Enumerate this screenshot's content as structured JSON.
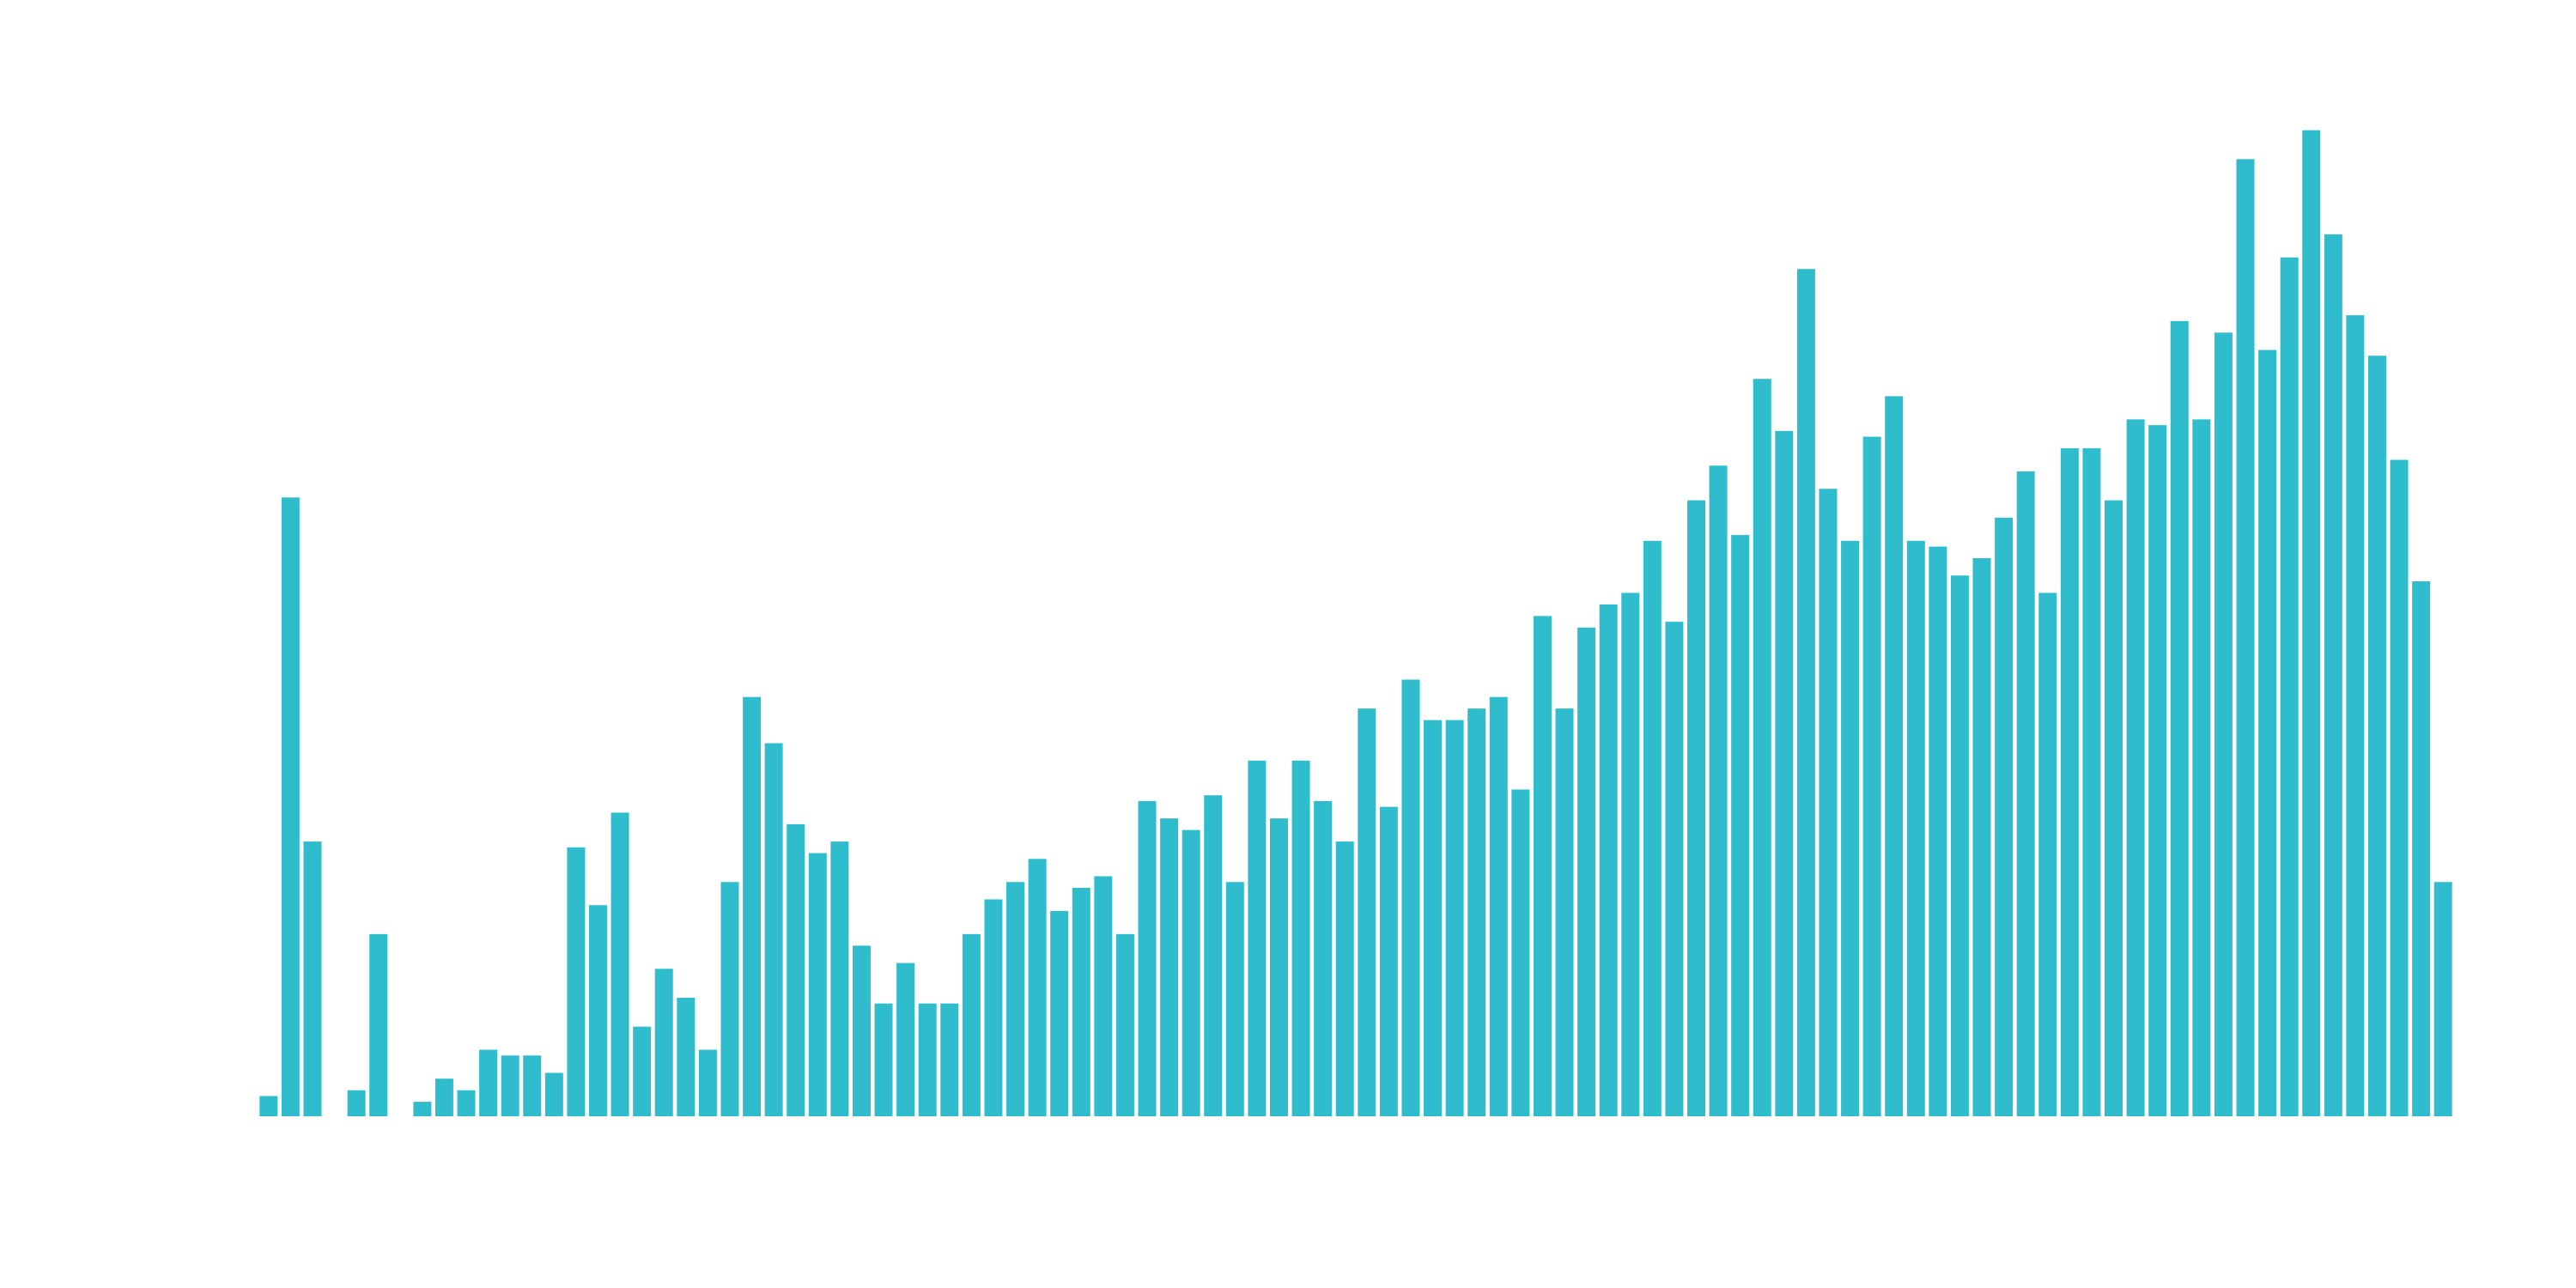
{
  "chart_data": {
    "type": "bar",
    "color": "#2fbccd",
    "title": "",
    "xlabel": "",
    "ylabel": "",
    "ylim": [
      0,
      170
    ],
    "grid": false,
    "legend": "none",
    "values": [
      3.5,
      107,
      47.5,
      0,
      4.5,
      31.5,
      0,
      2.5,
      6.5,
      4.5,
      11.5,
      10.5,
      10.5,
      7.5,
      46.5,
      36.5,
      52.5,
      15.5,
      25.5,
      20.5,
      11.5,
      40.5,
      72.5,
      64.5,
      50.5,
      45.5,
      47.5,
      29.5,
      19.5,
      26.5,
      19.5,
      19.5,
      31.5,
      37.5,
      40.5,
      44.5,
      35.5,
      39.5,
      41.5,
      31.5,
      54.5,
      51.5,
      49.5,
      55.5,
      40.5,
      61.5,
      51.5,
      61.5,
      54.5,
      47.5,
      70.5,
      53.5,
      75.5,
      68.5,
      68.5,
      70.5,
      72.5,
      56.5,
      86.5,
      70.5,
      84.5,
      88.5,
      90.5,
      99.5,
      85.5,
      106.5,
      112.5,
      100.5,
      127.5,
      118.5,
      146.5,
      108.5,
      99.5,
      117.5,
      124.5,
      99.5,
      98.5,
      93.5,
      96.5,
      103.5,
      111.5,
      90.5,
      115.5,
      115.5,
      106.5,
      120.5,
      119.5,
      137.5,
      120.5,
      135.5,
      165.5,
      132.5,
      148.5,
      170.5,
      152.5,
      138.5,
      131.5,
      113.5,
      92.5,
      40.5
    ]
  }
}
